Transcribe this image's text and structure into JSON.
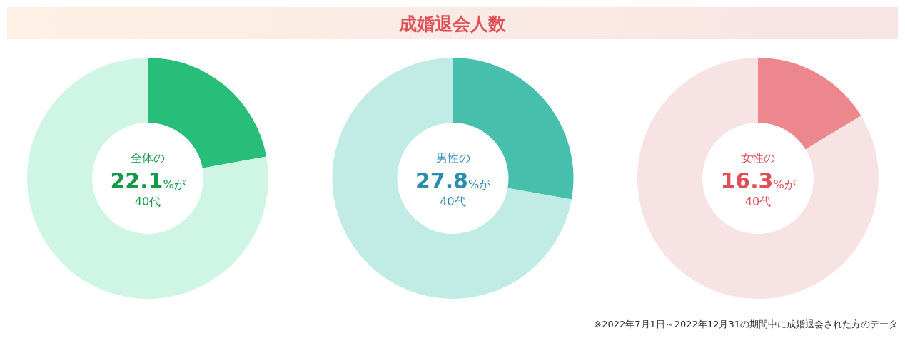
{
  "chart_data": [
    {
      "type": "donut",
      "subtitle": "全体の",
      "categories": [
        null,
        null
      ],
      "values": [
        22.1,
        77.9
      ],
      "colors": [
        "#27be7a",
        "#cff5e4"
      ],
      "annotations": [
        "22.1",
        "%が",
        "40代"
      ]
    },
    {
      "type": "donut",
      "title": "成婚退会人数",
      "subtitle": "男性の",
      "categories": [
        null,
        null
      ],
      "values": [
        27.8,
        72.2
      ],
      "colors": [
        "#47bfad",
        "#c0ece5"
      ],
      "annotations": [
        "27.8",
        "%が",
        "40代"
      ]
    },
    {
      "type": "donut",
      "subtitle": "女性の",
      "categories": [
        null,
        null
      ],
      "values": [
        16.3,
        83.7
      ],
      "colors": [
        "#ec878d",
        "#f8e3e4"
      ],
      "annotations": [
        "16.3",
        "%が",
        "40代",
        "※2022年7月1日～2022年12月31の期間中に成婚退会された方のデータ"
      ]
    }
  ]
}
